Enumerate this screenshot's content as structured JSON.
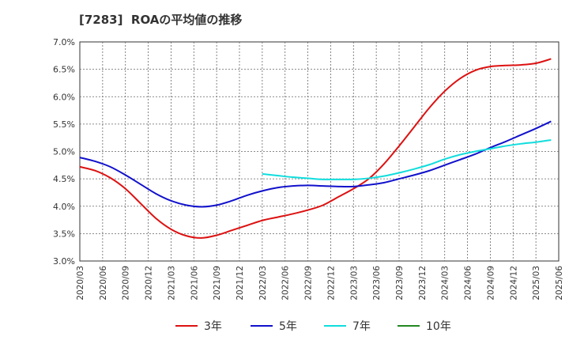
{
  "title": "[7283]  ROAの平均値の推移",
  "chart_data": {
    "type": "line",
    "title": "[7283]  ROAの平均値の推移",
    "xlabel": "",
    "ylabel": "",
    "ylim": [
      3.0,
      7.0
    ],
    "y_ticks": [
      "3.0%",
      "3.5%",
      "4.0%",
      "4.5%",
      "5.0%",
      "5.5%",
      "6.0%",
      "6.5%",
      "7.0%"
    ],
    "x_ticks": [
      "2020/03",
      "2020/06",
      "2020/09",
      "2020/12",
      "2021/03",
      "2021/06",
      "2021/09",
      "2021/12",
      "2022/03",
      "2022/06",
      "2022/09",
      "2022/12",
      "2023/03",
      "2023/06",
      "2023/09",
      "2023/12",
      "2024/03",
      "2024/06",
      "2024/09",
      "2024/12",
      "2025/03",
      "2025/06"
    ],
    "grid": true,
    "legend_position": "bottom",
    "series": [
      {
        "name": "3年",
        "color": "#dd1111",
        "values": [
          [
            "2020/03",
            4.72
          ],
          [
            "2020/05",
            4.65
          ],
          [
            "2020/07",
            4.52
          ],
          [
            "2020/09",
            4.32
          ],
          [
            "2020/11",
            4.05
          ],
          [
            "2021/01",
            3.78
          ],
          [
            "2021/03",
            3.58
          ],
          [
            "2021/05",
            3.46
          ],
          [
            "2021/07",
            3.42
          ],
          [
            "2021/09",
            3.47
          ],
          [
            "2021/11",
            3.56
          ],
          [
            "2022/01",
            3.65
          ],
          [
            "2022/03",
            3.74
          ],
          [
            "2022/05",
            3.8
          ],
          [
            "2022/07",
            3.86
          ],
          [
            "2022/09",
            3.93
          ],
          [
            "2022/11",
            4.02
          ],
          [
            "2023/01",
            4.17
          ],
          [
            "2023/03",
            4.32
          ],
          [
            "2023/05",
            4.5
          ],
          [
            "2023/07",
            4.77
          ],
          [
            "2023/09",
            5.1
          ],
          [
            "2023/11",
            5.45
          ],
          [
            "2024/01",
            5.8
          ],
          [
            "2024/03",
            6.1
          ],
          [
            "2024/05",
            6.33
          ],
          [
            "2024/07",
            6.48
          ],
          [
            "2024/09",
            6.55
          ],
          [
            "2024/11",
            6.57
          ],
          [
            "2025/01",
            6.58
          ],
          [
            "2025/03",
            6.61
          ],
          [
            "2025/05",
            6.69
          ]
        ]
      },
      {
        "name": "5年",
        "color": "#1111cc",
        "values": [
          [
            "2020/03",
            4.89
          ],
          [
            "2020/05",
            4.82
          ],
          [
            "2020/07",
            4.72
          ],
          [
            "2020/09",
            4.57
          ],
          [
            "2020/11",
            4.4
          ],
          [
            "2021/01",
            4.23
          ],
          [
            "2021/03",
            4.1
          ],
          [
            "2021/05",
            4.02
          ],
          [
            "2021/07",
            3.99
          ],
          [
            "2021/09",
            4.02
          ],
          [
            "2021/11",
            4.1
          ],
          [
            "2022/01",
            4.2
          ],
          [
            "2022/03",
            4.28
          ],
          [
            "2022/05",
            4.34
          ],
          [
            "2022/07",
            4.37
          ],
          [
            "2022/09",
            4.38
          ],
          [
            "2022/11",
            4.37
          ],
          [
            "2023/01",
            4.36
          ],
          [
            "2023/03",
            4.36
          ],
          [
            "2023/05",
            4.39
          ],
          [
            "2023/07",
            4.43
          ],
          [
            "2023/09",
            4.5
          ],
          [
            "2023/11",
            4.57
          ],
          [
            "2024/01",
            4.65
          ],
          [
            "2024/03",
            4.75
          ],
          [
            "2024/05",
            4.85
          ],
          [
            "2024/07",
            4.95
          ],
          [
            "2024/09",
            5.07
          ],
          [
            "2024/11",
            5.18
          ],
          [
            "2025/01",
            5.3
          ],
          [
            "2025/03",
            5.42
          ],
          [
            "2025/05",
            5.55
          ]
        ]
      },
      {
        "name": "7年",
        "color": "#11dddd",
        "values": [
          [
            "2022/03",
            4.59
          ],
          [
            "2022/05",
            4.56
          ],
          [
            "2022/07",
            4.53
          ],
          [
            "2022/09",
            4.51
          ],
          [
            "2022/11",
            4.49
          ],
          [
            "2023/01",
            4.49
          ],
          [
            "2023/03",
            4.49
          ],
          [
            "2023/05",
            4.51
          ],
          [
            "2023/07",
            4.55
          ],
          [
            "2023/09",
            4.61
          ],
          [
            "2023/11",
            4.68
          ],
          [
            "2024/01",
            4.76
          ],
          [
            "2024/03",
            4.86
          ],
          [
            "2024/05",
            4.94
          ],
          [
            "2024/07",
            5.0
          ],
          [
            "2024/09",
            5.05
          ],
          [
            "2024/11",
            5.1
          ],
          [
            "2025/01",
            5.14
          ],
          [
            "2025/03",
            5.17
          ],
          [
            "2025/05",
            5.21
          ]
        ]
      },
      {
        "name": "10年",
        "color": "#228822",
        "values": []
      }
    ]
  }
}
